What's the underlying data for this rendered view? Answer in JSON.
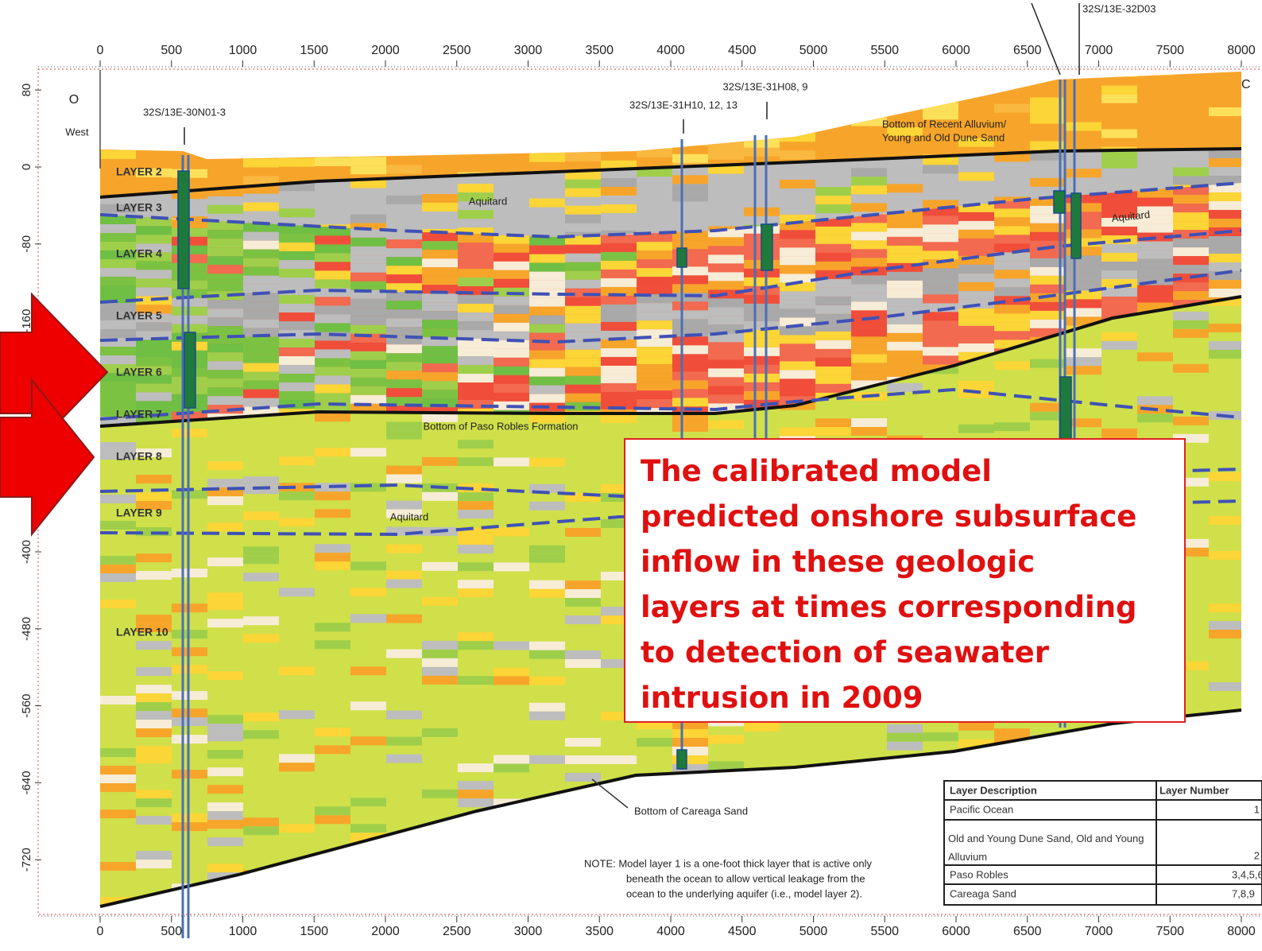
{
  "axes": {
    "x_ticks": [
      0,
      500,
      1000,
      1500,
      2000,
      2500,
      3000,
      3500,
      4000,
      4500,
      5000,
      5500,
      6000,
      6500,
      7000,
      7500,
      8000
    ],
    "y_ticks": [
      80,
      0,
      -80,
      -160,
      -400,
      -480,
      -560,
      -640,
      -720
    ]
  },
  "labels": {
    "origin": "O",
    "west": "West",
    "east": "C",
    "well_30n01": "32S/13E-30N01-3",
    "well_31h10": "32S/13E-31H10, 12, 13",
    "well_31h08": "32S/13E-31H08, 9",
    "well_32d03": "32S/13E-32D03",
    "recent_alluvium_1": "Bottom of Recent Alluvium/",
    "recent_alluvium_2": "Young and Old Dune Sand",
    "aquitard_upper": "Aquitard",
    "aquitard_right": "Aquitard",
    "aquitard_lower": "Aquitard",
    "paso_robles": "Bottom of Paso Robles Formation",
    "careaga": "Bottom of Careaga Sand"
  },
  "layers": [
    "LAYER 2",
    "LAYER 3",
    "LAYER 4",
    "LAYER 5",
    "LAYER 6",
    "LAYER 7",
    "LAYER 8",
    "LAYER 9",
    "LAYER 10"
  ],
  "note": [
    "NOTE: Model layer 1 is a one-foot thick layer that is active only",
    "beneath the ocean to allow vertical leakage from the",
    "ocean to the underlying aquifer (i.e., model layer 2)."
  ],
  "callout": [
    "The calibrated model",
    "predicted onshore subsurface",
    "inflow in these geologic",
    "layers at times corresponding",
    "to detection of seawater",
    "intrusion in 2009"
  ],
  "legend": {
    "header": [
      "Layer Description",
      "Layer Number"
    ],
    "rows": [
      [
        "Pacific Ocean",
        "1"
      ],
      [
        "Old and Young Dune Sand, Old and Young Alluvium",
        "2"
      ],
      [
        "Paso Robles",
        "3,4,5,6"
      ],
      [
        "Careaga Sand",
        "7,8,9"
      ]
    ]
  }
}
